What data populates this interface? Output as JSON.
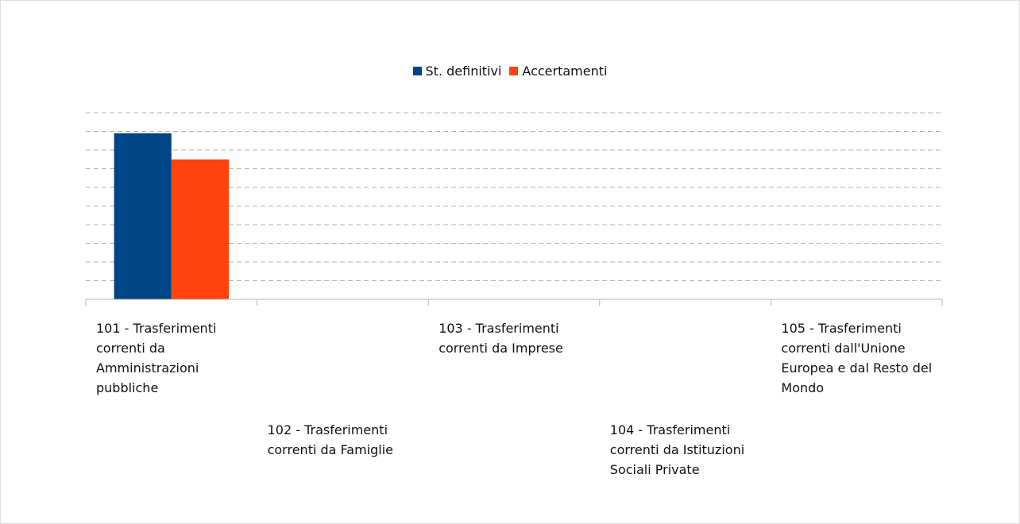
{
  "chart_data": {
    "type": "bar",
    "categories": [
      "101 - Trasferimenti correnti da Amministrazioni pubbliche",
      "102 - Trasferimenti correnti da Famiglie",
      "103 - Trasferimenti correnti da Imprese",
      "104 - Trasferimenti correnti da Istituzioni Sociali Private",
      "105 - Trasferimenti correnti dall'Unione Europea e dal Resto del Mondo"
    ],
    "series": [
      {
        "name": "St. definitivi",
        "color": "#004586",
        "values": [
          8.9,
          0,
          0,
          0,
          0
        ]
      },
      {
        "name": "Accertamenti",
        "color": "#ff420e",
        "values": [
          7.5,
          0,
          0,
          0,
          0
        ]
      }
    ],
    "ylim": [
      0,
      10
    ],
    "yticks": [
      0,
      1,
      2,
      3,
      4,
      5,
      6,
      7,
      8,
      9,
      10
    ],
    "grid": true,
    "legend": "top"
  }
}
